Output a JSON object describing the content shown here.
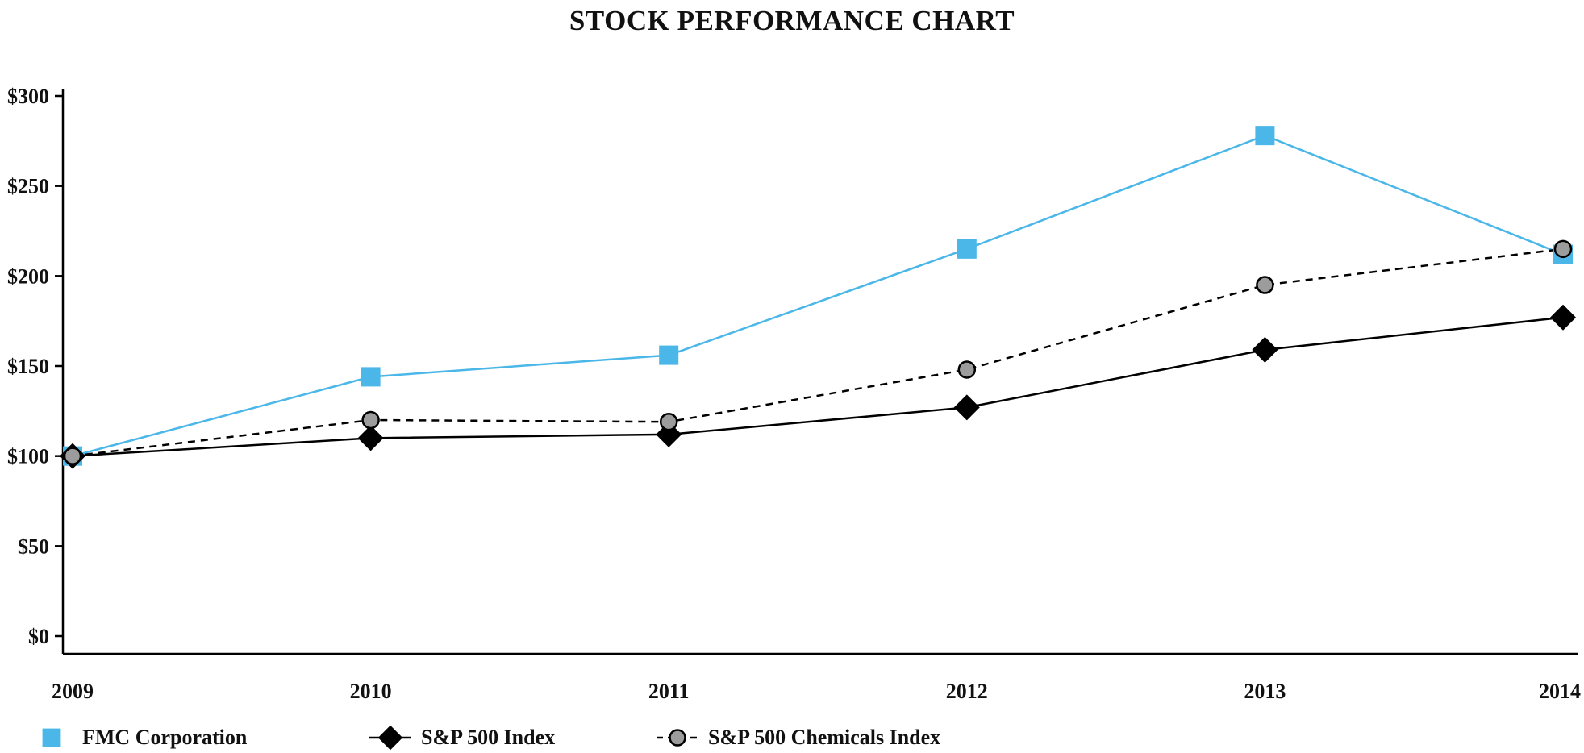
{
  "title": "STOCK PERFORMANCE CHART",
  "colors": {
    "fmc_blue": "#4AB7E8",
    "black": "#000000",
    "gray_marker": "#9C9C9C",
    "axis": "#000000",
    "text": "#111111",
    "background": "#FFFFFF"
  },
  "chart_data": {
    "type": "line",
    "title": "STOCK PERFORMANCE CHART",
    "x": [
      2009,
      2010,
      2011,
      2012,
      2013,
      2014
    ],
    "x_tick_labels": [
      "2009",
      "2010",
      "2011",
      "2012",
      "2013",
      "2014"
    ],
    "y_ticks": [
      0,
      50,
      100,
      150,
      200,
      250,
      300
    ],
    "y_tick_labels": [
      "$0",
      "$50",
      "$100",
      "$150",
      "$200",
      "$250",
      "$300"
    ],
    "ylim": [
      0,
      300
    ],
    "grid": false,
    "legend_position": "bottom-left",
    "series": [
      {
        "name": "FMC Corporation",
        "values": [
          100,
          144,
          156,
          215,
          278,
          212
        ],
        "color": "#4AB7E8",
        "line_style": "solid",
        "marker": "square",
        "marker_fill": "#4AB7E8"
      },
      {
        "name": "S&P 500 Index",
        "values": [
          100,
          110,
          112,
          127,
          159,
          177
        ],
        "color": "#000000",
        "line_style": "solid",
        "marker": "diamond",
        "marker_fill": "#000000"
      },
      {
        "name": "S&P 500 Chemicals Index",
        "values": [
          100,
          120,
          119,
          148,
          195,
          215
        ],
        "color": "#000000",
        "line_style": "dashed",
        "marker": "circle",
        "marker_fill": "#9C9C9C"
      }
    ]
  }
}
